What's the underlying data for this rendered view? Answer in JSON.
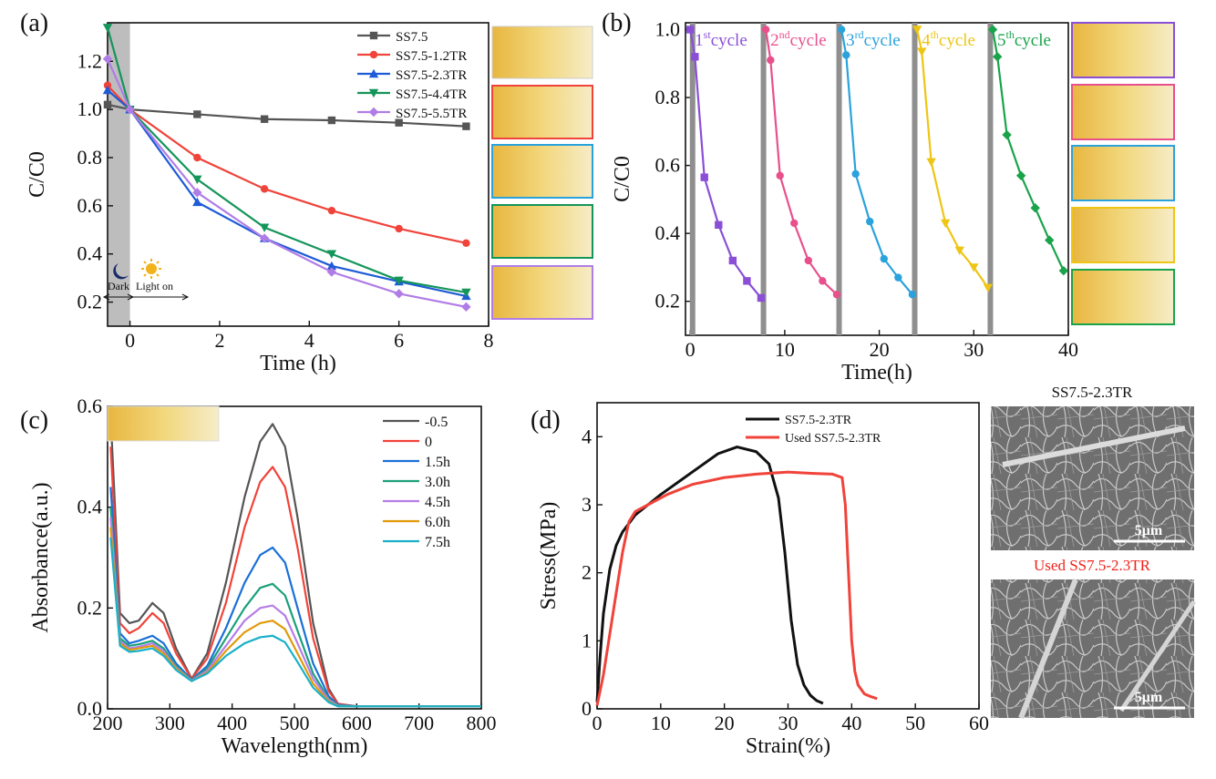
{
  "colors": {
    "black": "#111111",
    "red": "#f0433a",
    "blue": "#1e5bd6",
    "green": "#14955a",
    "purple": "#b07de6",
    "gray": "#555555",
    "violet": "#8a4fd6",
    "pink": "#e8508c",
    "sky": "#2aa2dc",
    "gold": "#eec514",
    "emerald": "#19a34a",
    "orange": "#e09a0a",
    "cyan": "#1ab0c8",
    "bluec": "#1a6fd8",
    "greenc": "#1aa07a",
    "lilac": "#b57ee6"
  },
  "chart_data": [
    {
      "panel": "(a)",
      "type": "line",
      "xlabel": "Time (h)",
      "ylabel": "C/C0",
      "xlim": [
        -0.5,
        8
      ],
      "ylim": [
        0.1,
        1.36
      ],
      "xticks": [
        0,
        2,
        4,
        6,
        8
      ],
      "yticks": [
        0.2,
        0.4,
        0.6,
        0.8,
        1.0,
        1.2
      ],
      "dark_label": "Dark",
      "light_label": "Light on",
      "series": [
        {
          "name": "SS7.5",
          "color": "#555555",
          "marker": "square",
          "x": [
            -0.5,
            0,
            1.5,
            3,
            4.5,
            6,
            7.5
          ],
          "y": [
            1.02,
            1.0,
            0.98,
            0.96,
            0.955,
            0.945,
            0.93
          ]
        },
        {
          "name": "SS7.5-1.2TR",
          "color": "#f0433a",
          "marker": "circle",
          "x": [
            -0.5,
            0,
            1.5,
            3,
            4.5,
            6,
            7.5
          ],
          "y": [
            1.1,
            1.0,
            0.8,
            0.67,
            0.58,
            0.505,
            0.445
          ]
        },
        {
          "name": "SS7.5-2.3TR",
          "color": "#1e5bd6",
          "marker": "triangle",
          "x": [
            -0.5,
            0,
            1.5,
            3,
            4.5,
            6,
            7.5
          ],
          "y": [
            1.08,
            1.0,
            0.615,
            0.465,
            0.35,
            0.285,
            0.225
          ]
        },
        {
          "name": "SS7.5-4.4TR",
          "color": "#14955a",
          "marker": "triangle-down",
          "x": [
            -0.5,
            0,
            1.5,
            3,
            4.5,
            6,
            7.5
          ],
          "y": [
            1.34,
            1.0,
            0.71,
            0.51,
            0.4,
            0.29,
            0.24
          ]
        },
        {
          "name": "SS7.5-5.5TR",
          "color": "#b07de6",
          "marker": "diamond",
          "x": [
            -0.5,
            0,
            1.5,
            3,
            4.5,
            6,
            7.5
          ],
          "y": [
            1.21,
            1.0,
            0.655,
            0.465,
            0.325,
            0.235,
            0.18
          ]
        }
      ]
    },
    {
      "panel": "(b)",
      "type": "line",
      "xlabel": "Time(h)",
      "ylabel": "C/C0",
      "xlim": [
        -0.5,
        40
      ],
      "ylim": [
        0.1,
        1.02
      ],
      "xticks": [
        0,
        10,
        20,
        30,
        40
      ],
      "yticks": [
        0.2,
        0.4,
        0.6,
        0.8,
        1.0
      ],
      "dividers": [
        0.25,
        7.75,
        15.75,
        23.75,
        31.75
      ],
      "series": [
        {
          "name": "1st cycle",
          "num": "1",
          "sup": "st",
          "word": "cycle",
          "color": "#8a4fd6",
          "x": [
            0,
            0.5,
            1.5,
            3,
            4.5,
            6,
            7.5
          ],
          "y": [
            1.0,
            0.92,
            0.565,
            0.425,
            0.32,
            0.26,
            0.21
          ]
        },
        {
          "name": "2nd cycle",
          "num": "2",
          "sup": "nd",
          "word": "cycle",
          "color": "#e8508c",
          "x": [
            8,
            8.5,
            9.5,
            11,
            12.5,
            14,
            15.5
          ],
          "y": [
            1.0,
            0.91,
            0.57,
            0.43,
            0.32,
            0.26,
            0.22
          ]
        },
        {
          "name": "3rd cycle",
          "num": "3",
          "sup": "rd",
          "word": "cycle",
          "color": "#2aa2dc",
          "x": [
            16,
            16.5,
            17.5,
            19,
            20.5,
            22,
            23.5
          ],
          "y": [
            1.0,
            0.925,
            0.575,
            0.435,
            0.325,
            0.27,
            0.22
          ]
        },
        {
          "name": "4th cycle",
          "num": "4",
          "sup": "th",
          "word": "cycle",
          "color": "#eec514",
          "x": [
            24,
            24.5,
            25.5,
            27,
            28.5,
            30,
            31.5
          ],
          "y": [
            1.0,
            0.935,
            0.61,
            0.43,
            0.35,
            0.3,
            0.24
          ]
        },
        {
          "name": "5th cycle",
          "num": "5",
          "sup": "th",
          "word": "cycle",
          "color": "#19a34a",
          "x": [
            32,
            32.5,
            33.5,
            35,
            36.5,
            38,
            39.5
          ],
          "y": [
            1.0,
            0.92,
            0.69,
            0.57,
            0.475,
            0.38,
            0.29
          ]
        }
      ]
    },
    {
      "panel": "(c)",
      "type": "line",
      "xlabel": "Wavelength(nm)",
      "ylabel": "Absorbance(a.u.)",
      "xlim": [
        200,
        800
      ],
      "ylim": [
        0,
        0.6
      ],
      "xticks": [
        200,
        300,
        400,
        500,
        600,
        700,
        800
      ],
      "yticks": [
        0.0,
        0.2,
        0.4,
        0.6
      ],
      "series": [
        {
          "name": "-0.5",
          "color": "#555555",
          "x": [
            205,
            220,
            235,
            250,
            272,
            290,
            310,
            335,
            360,
            390,
            420,
            445,
            465,
            485,
            505,
            530,
            555,
            570,
            600,
            700,
            800
          ],
          "y": [
            0.58,
            0.19,
            0.17,
            0.175,
            0.21,
            0.19,
            0.12,
            0.06,
            0.11,
            0.25,
            0.42,
            0.53,
            0.565,
            0.52,
            0.38,
            0.17,
            0.04,
            0.01,
            0.005,
            0.005,
            0.005
          ]
        },
        {
          "name": "0",
          "color": "#f0433a",
          "x": [
            205,
            220,
            235,
            250,
            272,
            290,
            310,
            335,
            360,
            390,
            420,
            445,
            465,
            485,
            505,
            530,
            555,
            570,
            600,
            700,
            800
          ],
          "y": [
            0.52,
            0.17,
            0.15,
            0.16,
            0.19,
            0.17,
            0.11,
            0.06,
            0.1,
            0.21,
            0.36,
            0.45,
            0.48,
            0.44,
            0.32,
            0.14,
            0.035,
            0.01,
            0.005,
            0.005,
            0.005
          ]
        },
        {
          "name": "1.5h",
          "color": "#1a6fd8",
          "x": [
            205,
            220,
            235,
            250,
            272,
            290,
            310,
            335,
            360,
            390,
            420,
            445,
            465,
            485,
            505,
            530,
            555,
            570,
            600,
            700,
            800
          ],
          "y": [
            0.44,
            0.15,
            0.13,
            0.135,
            0.145,
            0.13,
            0.09,
            0.058,
            0.085,
            0.16,
            0.25,
            0.305,
            0.32,
            0.29,
            0.2,
            0.09,
            0.025,
            0.008,
            0.005,
            0.005,
            0.005
          ]
        },
        {
          "name": "3.0h",
          "color": "#1aa07a",
          "x": [
            205,
            220,
            235,
            250,
            272,
            290,
            310,
            335,
            360,
            390,
            420,
            445,
            465,
            485,
            505,
            530,
            555,
            570,
            600,
            700,
            800
          ],
          "y": [
            0.4,
            0.14,
            0.125,
            0.128,
            0.135,
            0.12,
            0.085,
            0.057,
            0.08,
            0.14,
            0.2,
            0.24,
            0.248,
            0.225,
            0.155,
            0.07,
            0.02,
            0.007,
            0.005,
            0.005,
            0.005
          ]
        },
        {
          "name": "4.5h",
          "color": "#b57ee6",
          "x": [
            205,
            220,
            235,
            250,
            272,
            290,
            310,
            335,
            360,
            390,
            420,
            445,
            465,
            485,
            505,
            530,
            555,
            570,
            600,
            700,
            800
          ],
          "y": [
            0.38,
            0.135,
            0.12,
            0.123,
            0.13,
            0.115,
            0.082,
            0.056,
            0.076,
            0.125,
            0.175,
            0.2,
            0.205,
            0.185,
            0.13,
            0.06,
            0.018,
            0.006,
            0.005,
            0.005,
            0.005
          ]
        },
        {
          "name": "6.0h",
          "color": "#e09a0a",
          "x": [
            205,
            220,
            235,
            250,
            272,
            290,
            310,
            335,
            360,
            390,
            420,
            445,
            465,
            485,
            505,
            530,
            555,
            570,
            600,
            700,
            800
          ],
          "y": [
            0.36,
            0.13,
            0.117,
            0.12,
            0.125,
            0.11,
            0.08,
            0.055,
            0.072,
            0.115,
            0.152,
            0.17,
            0.175,
            0.158,
            0.11,
            0.05,
            0.015,
            0.005,
            0.005,
            0.005,
            0.005
          ]
        },
        {
          "name": "7.5h",
          "color": "#1ab0c8",
          "x": [
            205,
            220,
            235,
            250,
            272,
            290,
            310,
            335,
            360,
            390,
            420,
            445,
            465,
            485,
            505,
            530,
            555,
            570,
            600,
            700,
            800
          ],
          "y": [
            0.34,
            0.125,
            0.113,
            0.115,
            0.12,
            0.105,
            0.077,
            0.055,
            0.07,
            0.105,
            0.13,
            0.142,
            0.145,
            0.132,
            0.093,
            0.042,
            0.013,
            0.005,
            0.005,
            0.005,
            0.005
          ]
        }
      ]
    },
    {
      "panel": "(d)",
      "type": "line",
      "xlabel": "Strain(%)",
      "ylabel": "Stress(MPa)",
      "xlim": [
        0,
        60
      ],
      "ylim": [
        0,
        4.5
      ],
      "xticks": [
        0,
        10,
        20,
        30,
        40,
        50,
        60
      ],
      "yticks": [
        0,
        1,
        2,
        3,
        4
      ],
      "series": [
        {
          "name": "SS7.5-2.3TR",
          "color": "#111111",
          "x": [
            0,
            0.5,
            1,
            2,
            3,
            4,
            6,
            8,
            10,
            13,
            16,
            19,
            22,
            25,
            27,
            28.5,
            29.5,
            30.5,
            31.5,
            32.5,
            33.5,
            34.5,
            35.5
          ],
          "y": [
            0.1,
            0.8,
            1.4,
            2.05,
            2.4,
            2.6,
            2.85,
            3.0,
            3.15,
            3.35,
            3.55,
            3.75,
            3.85,
            3.78,
            3.6,
            3.1,
            2.3,
            1.3,
            0.65,
            0.35,
            0.2,
            0.12,
            0.08
          ]
        },
        {
          "name": "Used SS7.5-2.3TR",
          "color": "#f0433a",
          "x": [
            0,
            1,
            2,
            3,
            4,
            5,
            6,
            8,
            11,
            15,
            20,
            25,
            30,
            34,
            37,
            38.5,
            39,
            39.5,
            40,
            40.5,
            41,
            42,
            43,
            44
          ],
          "y": [
            0.05,
            0.5,
            1.1,
            1.7,
            2.3,
            2.75,
            2.9,
            3.0,
            3.15,
            3.3,
            3.4,
            3.45,
            3.48,
            3.46,
            3.45,
            3.4,
            3.0,
            2.0,
            1.0,
            0.55,
            0.35,
            0.22,
            0.18,
            0.15
          ]
        }
      ],
      "sem_labels": [
        "SS7.5-2.3TR",
        "Used SS7.5-2.3TR"
      ],
      "scale_bar": "5μm"
    }
  ],
  "panels": [
    "(a)",
    "(b)",
    "(c)",
    "(d)"
  ]
}
